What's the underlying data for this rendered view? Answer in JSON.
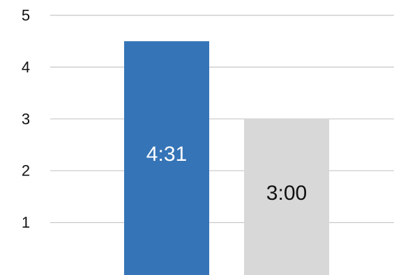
{
  "chart_data": {
    "type": "bar",
    "categories": [
      "",
      ""
    ],
    "values": [
      4.5,
      3.0
    ],
    "data_labels": [
      "4:31",
      "3:00"
    ],
    "colors": [
      "#3574b7",
      "#d8d8d8"
    ],
    "label_colors": [
      "#ffffff",
      "#111111"
    ],
    "y_ticks": [
      "1",
      "2",
      "3",
      "4",
      "5"
    ],
    "ylim": [
      0,
      5
    ],
    "grid": true,
    "legend": "none",
    "title": "",
    "xlabel": "",
    "ylabel": ""
  }
}
